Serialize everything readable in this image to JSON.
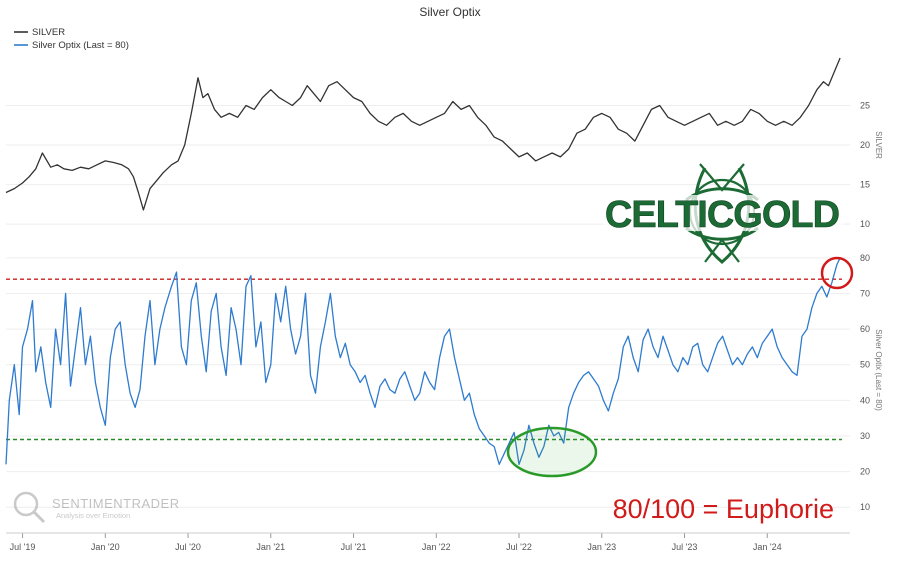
{
  "chart_data": {
    "type": "line",
    "title": "Silver Optix",
    "legend": {
      "placement": "top-left",
      "items": [
        {
          "name": "SILVER",
          "color": "#333333"
        },
        {
          "name": "Silver Optix (Last = 80)",
          "color": "#2e7bcf"
        }
      ]
    },
    "x_tick_labels": [
      "Jul '19",
      "Jan '20",
      "Jul '20",
      "Jan '21",
      "Jul '21",
      "Jan '22",
      "Jul '22",
      "Jan '23",
      "Jul '23",
      "Jan '24"
    ],
    "x_tick_positions": [
      2019.5,
      2020.0,
      2020.5,
      2021.0,
      2021.5,
      2022.0,
      2022.5,
      2023.0,
      2023.5,
      2024.0
    ],
    "xlim": [
      2019.4,
      2024.5
    ],
    "panels": [
      {
        "id": "silver",
        "ylabel": "SILVER",
        "ylim": [
          8,
          31
        ],
        "yticks": [
          10,
          15,
          20,
          25
        ],
        "series": {
          "name": "SILVER",
          "color": "#333333",
          "x": [
            2019.4,
            2019.45,
            2019.5,
            2019.54,
            2019.58,
            2019.62,
            2019.67,
            2019.71,
            2019.75,
            2019.8,
            2019.85,
            2019.9,
            2019.95,
            2020.0,
            2020.05,
            2020.1,
            2020.14,
            2020.17,
            2020.2,
            2020.23,
            2020.27,
            2020.31,
            2020.35,
            2020.4,
            2020.44,
            2020.48,
            2020.52,
            2020.56,
            2020.59,
            2020.62,
            2020.66,
            2020.7,
            2020.75,
            2020.8,
            2020.85,
            2020.9,
            2020.95,
            2021.0,
            2021.05,
            2021.09,
            2021.13,
            2021.18,
            2021.22,
            2021.26,
            2021.3,
            2021.35,
            2021.4,
            2021.45,
            2021.5,
            2021.55,
            2021.6,
            2021.65,
            2021.7,
            2021.75,
            2021.8,
            2021.85,
            2021.9,
            2021.95,
            2022.0,
            2022.05,
            2022.1,
            2022.15,
            2022.2,
            2022.25,
            2022.3,
            2022.35,
            2022.4,
            2022.45,
            2022.5,
            2022.55,
            2022.6,
            2022.65,
            2022.7,
            2022.75,
            2022.8,
            2022.85,
            2022.9,
            2022.95,
            2023.0,
            2023.05,
            2023.1,
            2023.15,
            2023.2,
            2023.25,
            2023.3,
            2023.35,
            2023.4,
            2023.45,
            2023.5,
            2023.55,
            2023.6,
            2023.65,
            2023.7,
            2023.75,
            2023.8,
            2023.85,
            2023.9,
            2023.95,
            2024.0,
            2024.05,
            2024.1,
            2024.15,
            2024.2,
            2024.25,
            2024.3,
            2024.34,
            2024.37,
            2024.4,
            2024.42,
            2024.44
          ],
          "y": [
            14.0,
            14.5,
            15.2,
            16.0,
            17.0,
            19.0,
            17.2,
            17.5,
            17.0,
            16.8,
            17.2,
            17.0,
            17.5,
            18.0,
            17.8,
            17.5,
            17.0,
            16.0,
            14.0,
            11.8,
            14.5,
            15.5,
            16.5,
            17.5,
            18.0,
            20.0,
            24.0,
            28.5,
            26.0,
            26.5,
            24.5,
            23.5,
            24.0,
            23.5,
            25.0,
            24.5,
            26.0,
            27.0,
            26.0,
            25.5,
            25.0,
            26.0,
            27.5,
            26.5,
            25.5,
            27.5,
            28.0,
            27.0,
            26.0,
            25.5,
            24.0,
            23.0,
            22.5,
            23.5,
            24.0,
            23.0,
            22.5,
            23.0,
            23.5,
            24.0,
            25.5,
            24.5,
            25.0,
            23.5,
            22.5,
            21.0,
            20.5,
            19.5,
            18.5,
            19.0,
            18.0,
            18.5,
            19.0,
            18.5,
            19.5,
            21.5,
            22.0,
            23.5,
            24.0,
            23.5,
            22.0,
            21.5,
            20.5,
            22.5,
            24.5,
            25.0,
            23.5,
            23.0,
            22.5,
            23.0,
            23.5,
            24.0,
            22.5,
            23.0,
            22.5,
            23.0,
            24.5,
            24.0,
            23.0,
            22.5,
            23.0,
            22.5,
            23.5,
            25.0,
            27.0,
            28.0,
            27.5,
            29.0,
            30.0,
            31.0
          ]
        }
      },
      {
        "id": "optix",
        "ylabel": "Silver Optix (Last = 80)",
        "ylim": [
          5,
          85
        ],
        "yticks": [
          10,
          20,
          30,
          40,
          50,
          60,
          70,
          80
        ],
        "reference_lines": [
          {
            "value": 74,
            "color": "#cc1f1f",
            "style": "dashed"
          },
          {
            "value": 29,
            "color": "#2a8a2a",
            "style": "dashed"
          }
        ],
        "series": {
          "name": "Silver Optix (Last = 80)",
          "color": "#2e7bcf",
          "x": [
            2019.4,
            2019.42,
            2019.45,
            2019.48,
            2019.5,
            2019.53,
            2019.56,
            2019.58,
            2019.61,
            2019.64,
            2019.67,
            2019.7,
            2019.73,
            2019.76,
            2019.79,
            2019.82,
            2019.85,
            2019.88,
            2019.91,
            2019.94,
            2019.97,
            2020.0,
            2020.03,
            2020.06,
            2020.09,
            2020.12,
            2020.15,
            2020.18,
            2020.21,
            2020.24,
            2020.27,
            2020.3,
            2020.33,
            2020.36,
            2020.4,
            2020.43,
            2020.46,
            2020.49,
            2020.52,
            2020.55,
            2020.58,
            2020.61,
            2020.64,
            2020.67,
            2020.7,
            2020.73,
            2020.76,
            2020.79,
            2020.82,
            2020.85,
            2020.88,
            2020.91,
            2020.94,
            2020.97,
            2021.0,
            2021.03,
            2021.06,
            2021.09,
            2021.12,
            2021.15,
            2021.18,
            2021.21,
            2021.24,
            2021.27,
            2021.3,
            2021.33,
            2021.36,
            2021.39,
            2021.42,
            2021.45,
            2021.48,
            2021.51,
            2021.54,
            2021.57,
            2021.6,
            2021.63,
            2021.66,
            2021.69,
            2021.72,
            2021.75,
            2021.78,
            2021.81,
            2021.84,
            2021.87,
            2021.9,
            2021.93,
            2021.96,
            2021.99,
            2022.02,
            2022.05,
            2022.08,
            2022.11,
            2022.14,
            2022.17,
            2022.2,
            2022.23,
            2022.26,
            2022.29,
            2022.32,
            2022.35,
            2022.38,
            2022.41,
            2022.44,
            2022.47,
            2022.5,
            2022.53,
            2022.56,
            2022.59,
            2022.62,
            2022.65,
            2022.68,
            2022.71,
            2022.74,
            2022.77,
            2022.8,
            2022.83,
            2022.86,
            2022.89,
            2022.92,
            2022.95,
            2022.98,
            2023.01,
            2023.04,
            2023.07,
            2023.1,
            2023.13,
            2023.16,
            2023.19,
            2023.22,
            2023.25,
            2023.28,
            2023.31,
            2023.34,
            2023.37,
            2023.4,
            2023.43,
            2023.46,
            2023.49,
            2023.52,
            2023.55,
            2023.58,
            2023.61,
            2023.64,
            2023.67,
            2023.7,
            2023.73,
            2023.76,
            2023.79,
            2023.82,
            2023.85,
            2023.88,
            2023.91,
            2023.94,
            2023.97,
            2024.0,
            2024.03,
            2024.06,
            2024.09,
            2024.12,
            2024.15,
            2024.18,
            2024.21,
            2024.24,
            2024.27,
            2024.3,
            2024.33,
            2024.36,
            2024.39,
            2024.42,
            2024.44
          ],
          "y": [
            22,
            40,
            50,
            36,
            55,
            60,
            68,
            48,
            55,
            45,
            38,
            60,
            50,
            70,
            44,
            55,
            66,
            50,
            58,
            45,
            38,
            33,
            52,
            60,
            62,
            50,
            42,
            38,
            43,
            58,
            68,
            50,
            60,
            66,
            72,
            76,
            55,
            50,
            68,
            73,
            58,
            48,
            65,
            70,
            55,
            47,
            66,
            60,
            50,
            72,
            75,
            55,
            62,
            45,
            50,
            70,
            62,
            72,
            60,
            53,
            58,
            70,
            47,
            42,
            55,
            62,
            70,
            58,
            52,
            56,
            50,
            48,
            45,
            47,
            42,
            38,
            44,
            46,
            43,
            42,
            46,
            48,
            44,
            40,
            42,
            48,
            45,
            43,
            52,
            58,
            60,
            52,
            46,
            40,
            42,
            36,
            32,
            30,
            28,
            27,
            22,
            25,
            28,
            31,
            22,
            26,
            33,
            28,
            24,
            27,
            33,
            30,
            31,
            28,
            38,
            42,
            45,
            47,
            48,
            46,
            44,
            40,
            37,
            42,
            46,
            55,
            58,
            52,
            48,
            57,
            60,
            55,
            52,
            58,
            54,
            50,
            48,
            52,
            50,
            55,
            56,
            50,
            48,
            52,
            56,
            58,
            54,
            50,
            52,
            50,
            53,
            55,
            52,
            56,
            58,
            60,
            55,
            52,
            50,
            48,
            47,
            58,
            60,
            66,
            70,
            72,
            69,
            73,
            78,
            80
          ]
        }
      }
    ],
    "annotations": [
      {
        "type": "circle",
        "color": "#2a9a2a",
        "label": ""
      },
      {
        "type": "circle",
        "color": "#d11a1a",
        "label": ""
      },
      {
        "type": "text",
        "text": "80/100 = Euphorie",
        "color": "#d11a1a"
      }
    ],
    "logo": {
      "text": "CELTICGOLD",
      "color": "#1c6b35"
    },
    "watermark": {
      "line1": "SENTIMENTRADER",
      "line2": "Analysis over Emotion"
    }
  }
}
